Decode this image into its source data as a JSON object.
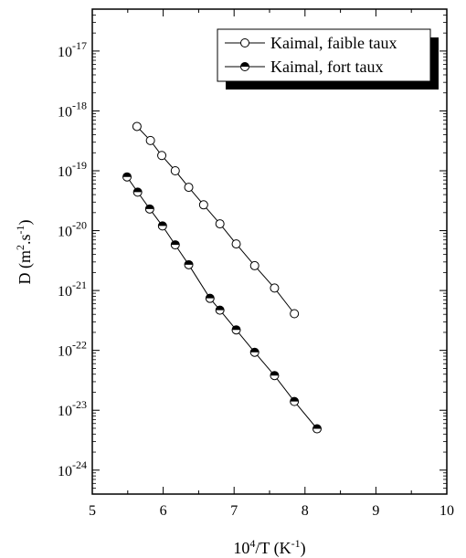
{
  "chart_data": {
    "type": "scatter",
    "xlabel_base": "10",
    "xlabel_sup": "4",
    "xlabel_mid": "/T (K",
    "xlabel_sup2": "-1",
    "xlabel_end": ")",
    "ylabel_pre": "D (m",
    "ylabel_sup1": "2",
    "ylabel_mid": ".s",
    "ylabel_sup2": "-1",
    "ylabel_end": ")",
    "xlim": [
      5,
      10
    ],
    "ylim_log10": [
      -24.4,
      -16.3
    ],
    "y_scale": "log",
    "x_ticks": [
      "5",
      "6",
      "7",
      "8",
      "9",
      "10"
    ],
    "y_ticks": [
      {
        "base": "10",
        "exp": "-17"
      },
      {
        "base": "10",
        "exp": "-18"
      },
      {
        "base": "10",
        "exp": "-19"
      },
      {
        "base": "10",
        "exp": "-20"
      },
      {
        "base": "10",
        "exp": "-21"
      },
      {
        "base": "10",
        "exp": "-22"
      },
      {
        "base": "10",
        "exp": "-23"
      },
      {
        "base": "10",
        "exp": "-24"
      }
    ],
    "legend_position": "top-right",
    "series": [
      {
        "name": "Kaimal, faible taux",
        "marker": "open-circle",
        "x": [
          5.63,
          5.82,
          5.98,
          6.17,
          6.36,
          6.57,
          6.8,
          7.03,
          7.29,
          7.57,
          7.85
        ],
        "y": [
          5.5e-19,
          3.2e-19,
          1.8e-19,
          1e-19,
          5.3e-20,
          2.7e-20,
          1.3e-20,
          6e-21,
          2.6e-21,
          1.1e-21,
          4.1e-22
        ]
      },
      {
        "name": "Kaimal, fort taux",
        "marker": "half-filled-circle",
        "x": [
          5.49,
          5.64,
          5.81,
          5.99,
          6.17,
          6.36,
          6.66,
          6.8,
          7.03,
          7.29,
          7.57,
          7.85,
          8.17
        ],
        "y": [
          7.9e-20,
          4.4e-20,
          2.3e-20,
          1.2e-20,
          5.8e-21,
          2.7e-21,
          7.4e-22,
          4.7e-22,
          2.2e-22,
          9.3e-23,
          3.8e-23,
          1.4e-23,
          4.9e-24
        ]
      }
    ]
  }
}
